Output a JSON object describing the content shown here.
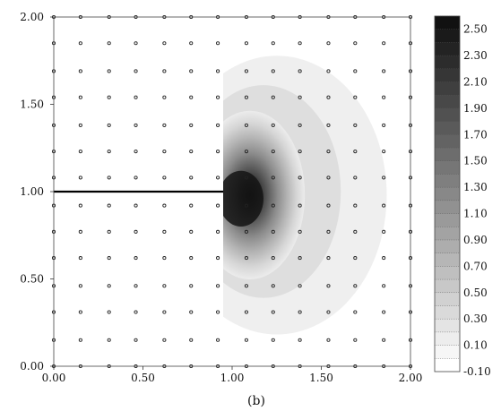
{
  "chart_data": {
    "type": "heatmap",
    "caption": "(b)",
    "x_ticks": [
      "0.00",
      "0.50",
      "1.00",
      "1.50",
      "2.00"
    ],
    "y_ticks": [
      "0.00",
      "0.50",
      "1.00",
      "1.50",
      "2.00"
    ],
    "xlim": [
      0,
      2
    ],
    "ylim": [
      0,
      2
    ],
    "colorbar": {
      "range": [
        -0.1,
        2.6
      ],
      "labels": [
        "2.50",
        "2.30",
        "2.10",
        "1.90",
        "1.70",
        "1.50",
        "1.30",
        "1.10",
        "0.90",
        "0.70",
        "0.50",
        "0.30",
        "0.10",
        "-0.10"
      ],
      "low_color": "#ffffff",
      "high_color": "#111111"
    },
    "crack": {
      "x_start": 0.0,
      "x_end": 0.95,
      "y": 1.0
    },
    "field": {
      "description_values": "peak near crack tip",
      "peak": {
        "x": 1.1,
        "y": 0.98,
        "value": 2.6
      },
      "spread_x": 0.28,
      "spread_y": 0.42,
      "shadow_x_limit": 0.95
    },
    "grid_markers": {
      "x": [
        0.0,
        0.15,
        0.31,
        0.46,
        0.62,
        0.77,
        0.92,
        1.08,
        1.23,
        1.38,
        1.54,
        1.69,
        1.85,
        2.0
      ],
      "y": [
        0.0,
        0.15,
        0.31,
        0.46,
        0.62,
        0.77,
        0.92,
        1.08,
        1.23,
        1.38,
        1.54,
        1.69,
        1.85,
        2.0
      ]
    }
  }
}
